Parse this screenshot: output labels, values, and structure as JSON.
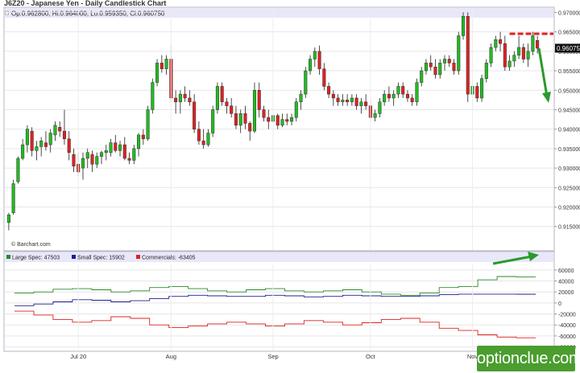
{
  "title": "J6Z20 - Japanese Yen - Daily Candlestick Chart",
  "ohlc_info": "Op:0.962800, Hi:0.964000, Lo:0.959350, Cl:0.960750",
  "current_price_label": "0.960750",
  "credit": "© Barchart.com",
  "watermark": "optionclue.com",
  "colors": {
    "up": "#22bb22",
    "down": "#dd2222",
    "large": "#2a8a2a",
    "small": "#1f1f8f",
    "comm": "#dd2222",
    "annotation_arrow": "#2a9a2a",
    "annotation_line": "#dd2222"
  },
  "chart_data": [
    {
      "type": "candlestick",
      "y_axis_side": "right",
      "yticks": [
        "0.970000",
        "0.965000",
        "0.960000",
        "0.955000",
        "0.950000",
        "0.945000",
        "0.940000",
        "0.935000",
        "0.930000",
        "0.925000",
        "0.920000",
        "0.915000"
      ],
      "ylim": [
        0.9135,
        0.9705
      ],
      "xticks": [
        {
          "label": "Jul 20",
          "index": 15
        },
        {
          "label": "Aug",
          "index": 35
        },
        {
          "label": "Sep",
          "index": 57
        },
        {
          "label": "Oct",
          "index": 78
        },
        {
          "label": "Nov",
          "index": 100
        }
      ],
      "candles": [
        [
          0.916,
          0.9185,
          0.914,
          0.918
        ],
        [
          0.9185,
          0.927,
          0.918,
          0.926
        ],
        [
          0.9265,
          0.933,
          0.926,
          0.9325
        ],
        [
          0.9325,
          0.9375,
          0.932,
          0.936
        ],
        [
          0.936,
          0.941,
          0.934,
          0.94
        ],
        [
          0.9395,
          0.9405,
          0.933,
          0.9345
        ],
        [
          0.9345,
          0.937,
          0.932,
          0.9355
        ],
        [
          0.9355,
          0.938,
          0.933,
          0.937
        ],
        [
          0.9365,
          0.9395,
          0.9345,
          0.9355
        ],
        [
          0.936,
          0.94,
          0.934,
          0.939
        ],
        [
          0.9385,
          0.942,
          0.937,
          0.941
        ],
        [
          0.9405,
          0.942,
          0.938,
          0.9395
        ],
        [
          0.9395,
          0.945,
          0.936,
          0.9375
        ],
        [
          0.9375,
          0.9395,
          0.932,
          0.934
        ],
        [
          0.9335,
          0.935,
          0.929,
          0.9305
        ],
        [
          0.931,
          0.934,
          0.928,
          0.929
        ],
        [
          0.93,
          0.934,
          0.927,
          0.9325
        ],
        [
          0.9325,
          0.935,
          0.93,
          0.934
        ],
        [
          0.9335,
          0.9345,
          0.929,
          0.931
        ],
        [
          0.931,
          0.934,
          0.93,
          0.933
        ],
        [
          0.933,
          0.9345,
          0.931,
          0.934
        ],
        [
          0.934,
          0.936,
          0.932,
          0.9345
        ],
        [
          0.934,
          0.9375,
          0.933,
          0.9365
        ],
        [
          0.9365,
          0.9385,
          0.934,
          0.9345
        ],
        [
          0.9345,
          0.937,
          0.933,
          0.936
        ],
        [
          0.936,
          0.938,
          0.932,
          0.9325
        ],
        [
          0.9325,
          0.934,
          0.931,
          0.932
        ],
        [
          0.932,
          0.936,
          0.931,
          0.935
        ],
        [
          0.935,
          0.939,
          0.933,
          0.9385
        ],
        [
          0.9385,
          0.94,
          0.936,
          0.9375
        ],
        [
          0.9375,
          0.946,
          0.937,
          0.945
        ],
        [
          0.945,
          0.953,
          0.944,
          0.952
        ],
        [
          0.952,
          0.958,
          0.951,
          0.957
        ],
        [
          0.957,
          0.959,
          0.9545,
          0.9555
        ],
        [
          0.9555,
          0.959,
          0.954,
          0.958
        ],
        [
          0.958,
          0.9615,
          0.947,
          0.948
        ],
        [
          0.948,
          0.95,
          0.944,
          0.947
        ],
        [
          0.947,
          0.95,
          0.944,
          0.949
        ],
        [
          0.949,
          0.951,
          0.947,
          0.948
        ],
        [
          0.948,
          0.95,
          0.946,
          0.947
        ],
        [
          0.947,
          0.949,
          0.939,
          0.94
        ],
        [
          0.94,
          0.942,
          0.936,
          0.937
        ],
        [
          0.937,
          0.94,
          0.935,
          0.936
        ],
        [
          0.936,
          0.94,
          0.9355,
          0.939
        ],
        [
          0.939,
          0.946,
          0.938,
          0.945
        ],
        [
          0.945,
          0.952,
          0.944,
          0.951
        ],
        [
          0.951,
          0.952,
          0.946,
          0.947
        ],
        [
          0.947,
          0.948,
          0.944,
          0.946
        ],
        [
          0.946,
          0.948,
          0.943,
          0.944
        ],
        [
          0.944,
          0.946,
          0.94,
          0.941
        ],
        [
          0.941,
          0.945,
          0.939,
          0.944
        ],
        [
          0.944,
          0.946,
          0.94,
          0.9415
        ],
        [
          0.9415,
          0.942,
          0.937,
          0.9395
        ],
        [
          0.9395,
          0.952,
          0.939,
          0.95
        ],
        [
          0.95,
          0.952,
          0.943,
          0.945
        ],
        [
          0.945,
          0.946,
          0.942,
          0.943
        ],
        [
          0.943,
          0.945,
          0.94,
          0.942
        ],
        [
          0.942,
          0.944,
          0.941,
          0.9435
        ],
        [
          0.9435,
          0.944,
          0.94,
          0.941
        ],
        [
          0.941,
          0.944,
          0.9405,
          0.9425
        ],
        [
          0.9425,
          0.944,
          0.941,
          0.942
        ],
        [
          0.942,
          0.944,
          0.941,
          0.943
        ],
        [
          0.943,
          0.948,
          0.942,
          0.947
        ],
        [
          0.947,
          0.95,
          0.945,
          0.949
        ],
        [
          0.949,
          0.956,
          0.948,
          0.955
        ],
        [
          0.955,
          0.959,
          0.954,
          0.958
        ],
        [
          0.958,
          0.961,
          0.956,
          0.96
        ],
        [
          0.96,
          0.9615,
          0.954,
          0.9555
        ],
        [
          0.9555,
          0.957,
          0.95,
          0.951
        ],
        [
          0.951,
          0.952,
          0.948,
          0.949
        ],
        [
          0.949,
          0.95,
          0.946,
          0.948
        ],
        [
          0.948,
          0.949,
          0.946,
          0.947
        ],
        [
          0.947,
          0.949,
          0.946,
          0.9475
        ],
        [
          0.9475,
          0.949,
          0.946,
          0.947
        ],
        [
          0.947,
          0.949,
          0.946,
          0.948
        ],
        [
          0.948,
          0.949,
          0.945,
          0.946
        ],
        [
          0.946,
          0.948,
          0.944,
          0.947
        ],
        [
          0.947,
          0.949,
          0.945,
          0.946
        ],
        [
          0.946,
          0.948,
          0.942,
          0.943
        ],
        [
          0.943,
          0.945,
          0.942,
          0.944
        ],
        [
          0.944,
          0.948,
          0.943,
          0.947
        ],
        [
          0.947,
          0.95,
          0.946,
          0.949
        ],
        [
          0.949,
          0.951,
          0.947,
          0.948
        ],
        [
          0.948,
          0.95,
          0.946,
          0.949
        ],
        [
          0.949,
          0.952,
          0.948,
          0.951
        ],
        [
          0.951,
          0.952,
          0.948,
          0.949
        ],
        [
          0.949,
          0.95,
          0.947,
          0.948
        ],
        [
          0.948,
          0.949,
          0.946,
          0.947
        ],
        [
          0.947,
          0.953,
          0.946,
          0.952
        ],
        [
          0.952,
          0.956,
          0.951,
          0.955
        ],
        [
          0.955,
          0.958,
          0.954,
          0.957
        ],
        [
          0.957,
          0.959,
          0.955,
          0.956
        ],
        [
          0.956,
          0.958,
          0.953,
          0.954
        ],
        [
          0.954,
          0.958,
          0.953,
          0.957
        ],
        [
          0.957,
          0.959,
          0.955,
          0.958
        ],
        [
          0.958,
          0.959,
          0.956,
          0.957
        ],
        [
          0.957,
          0.958,
          0.954,
          0.955
        ],
        [
          0.955,
          0.965,
          0.954,
          0.964
        ],
        [
          0.964,
          0.97,
          0.963,
          0.969
        ],
        [
          0.969,
          0.97,
          0.947,
          0.949
        ],
        [
          0.949,
          0.952,
          0.946,
          0.951
        ],
        [
          0.951,
          0.952,
          0.947,
          0.948
        ],
        [
          0.948,
          0.954,
          0.947,
          0.953
        ],
        [
          0.953,
          0.958,
          0.952,
          0.957
        ],
        [
          0.957,
          0.962,
          0.956,
          0.961
        ],
        [
          0.961,
          0.964,
          0.96,
          0.963
        ],
        [
          0.963,
          0.965,
          0.96,
          0.962
        ],
        [
          0.962,
          0.964,
          0.955,
          0.956
        ],
        [
          0.956,
          0.959,
          0.955,
          0.9575
        ],
        [
          0.9575,
          0.96,
          0.956,
          0.959
        ],
        [
          0.959,
          0.964,
          0.958,
          0.961
        ],
        [
          0.961,
          0.962,
          0.957,
          0.958
        ],
        [
          0.958,
          0.962,
          0.956,
          0.96
        ],
        [
          0.96,
          0.965,
          0.959,
          0.964
        ],
        [
          0.9628,
          0.964,
          0.9594,
          0.9608
        ]
      ]
    },
    {
      "type": "line",
      "legend": [
        {
          "label": "Large Spec: 47503"
        },
        {
          "label": "Small Spec: 15902"
        },
        {
          "label": "Commercials: -63405"
        }
      ],
      "yticks": [
        "60000",
        "40000",
        "20000",
        "0",
        "-20000",
        "-40000",
        "-60000",
        "-80000"
      ],
      "ylim": [
        -85000,
        70000
      ],
      "step": true,
      "series": [
        {
          "name": "Large Spec",
          "values": [
            18000,
            20000,
            25000,
            26000,
            24000,
            20000,
            22000,
            28000,
            30000,
            26000,
            22000,
            20000,
            24000,
            26000,
            22000,
            20000,
            22000,
            24000,
            20000,
            16000,
            14000,
            18000,
            28000,
            30000,
            42000,
            48000,
            47503
          ]
        },
        {
          "name": "Small Spec",
          "values": [
            -5000,
            -2000,
            2000,
            6000,
            5000,
            2000,
            4000,
            8000,
            12000,
            14000,
            13000,
            12000,
            12000,
            14000,
            13000,
            11000,
            12000,
            14000,
            13000,
            12000,
            12000,
            13000,
            15000,
            16000,
            16000,
            16000,
            15902
          ]
        },
        {
          "name": "Commercials",
          "values": [
            -15000,
            -22000,
            -30000,
            -35000,
            -32000,
            -25000,
            -28000,
            -40000,
            -45000,
            -42000,
            -38000,
            -35000,
            -38000,
            -42000,
            -38000,
            -32000,
            -35000,
            -40000,
            -36000,
            -30000,
            -28000,
            -35000,
            -46000,
            -50000,
            -58000,
            -62000,
            -63405
          ]
        }
      ]
    }
  ]
}
